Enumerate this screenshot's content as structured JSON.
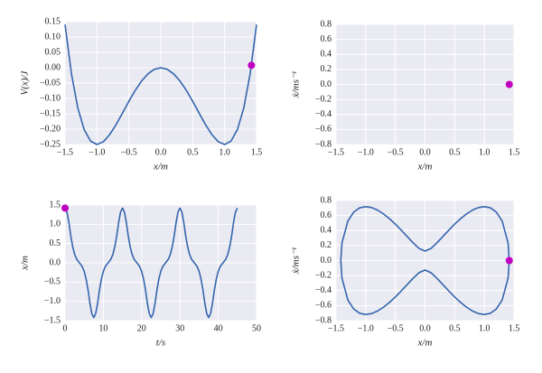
{
  "chart_data": [
    {
      "type": "line",
      "xlabel": "x/m",
      "ylabel": "V(x)/J",
      "color": "#3465ad",
      "grid": true,
      "x": [
        -1.5,
        -1.4,
        -1.3,
        -1.2,
        -1.1,
        -1.0,
        -0.9,
        -0.8,
        -0.7,
        -0.6,
        -0.5,
        -0.4,
        -0.3,
        -0.2,
        -0.1,
        0,
        0.1,
        0.2,
        0.3,
        0.4,
        0.5,
        0.6,
        0.7,
        0.8,
        0.9,
        1.0,
        1.1,
        1.2,
        1.3,
        1.4,
        1.5
      ],
      "values": [
        0.1406,
        -0.0196,
        -0.131,
        -0.2016,
        -0.239,
        -0.25,
        -0.241,
        -0.2176,
        -0.185,
        -0.1476,
        -0.1094,
        -0.0736,
        -0.043,
        -0.0196,
        -0.005,
        0,
        -0.005,
        -0.0196,
        -0.043,
        -0.0736,
        -0.1094,
        -0.1476,
        -0.185,
        -0.2176,
        -0.241,
        -0.25,
        -0.239,
        -0.2016,
        -0.131,
        -0.0196,
        0.1406
      ],
      "marker": {
        "x": 1.42,
        "y": 0.008,
        "color": "#bf00bf"
      },
      "xlim": [
        -1.5,
        1.5
      ],
      "ylim": [
        -0.25,
        0.15
      ],
      "xticks": [
        {
          "value": -1.5,
          "label": "−1.5"
        },
        {
          "value": -1.0,
          "label": "−1.0"
        },
        {
          "value": -0.5,
          "label": "−0.5"
        },
        {
          "value": 0,
          "label": "0.0"
        },
        0.5,
        {
          "value": 1.0,
          "label": "1.0"
        },
        1.5
      ],
      "yticks": [
        {
          "value": -0.25,
          "label": "−0.25"
        },
        {
          "value": -0.2,
          "label": "−0.20"
        },
        {
          "value": -0.15,
          "label": "−0.15"
        },
        {
          "value": -0.1,
          "label": "−0.10"
        },
        {
          "value": -0.05,
          "label": "−0.05"
        },
        {
          "value": 0,
          "label": "0.00"
        },
        0.05,
        {
          "value": 0.1,
          "label": "0.10"
        },
        0.15
      ]
    },
    {
      "type": "scatter",
      "xlabel": "x/m",
      "ylabel": "ẋ/ms⁻¹",
      "color": "#bf00bf",
      "grid": true,
      "x": [
        1.42
      ],
      "values": [
        0
      ],
      "xlim": [
        -1.5,
        1.5
      ],
      "ylim": [
        -0.8,
        0.8
      ],
      "xticks": [
        {
          "value": -1.5,
          "label": "−1.5"
        },
        {
          "value": -1.0,
          "label": "−1.0"
        },
        {
          "value": -0.5,
          "label": "−0.5"
        },
        {
          "value": 0,
          "label": "0.0"
        },
        0.5,
        {
          "value": 1.0,
          "label": "1.0"
        },
        1.5
      ],
      "yticks": [
        {
          "value": -0.8,
          "label": "−0.8"
        },
        {
          "value": -0.6,
          "label": "−0.6"
        },
        {
          "value": -0.4,
          "label": "−0.4"
        },
        {
          "value": -0.2,
          "label": "−0.2"
        },
        {
          "value": 0,
          "label": "0.0"
        },
        0.2,
        0.4,
        0.6,
        0.8
      ]
    },
    {
      "type": "line",
      "xlabel": "t/s",
      "ylabel": "x/m",
      "color": "#3465ad",
      "grid": true,
      "x": [
        0,
        0.5,
        1,
        1.5,
        2,
        2.5,
        3,
        3.5,
        4,
        4.5,
        5,
        5.5,
        6,
        6.5,
        7,
        7.5,
        8,
        8.5,
        9,
        9.5,
        10,
        10.5,
        11,
        11.5,
        12,
        12.5,
        13,
        13.5,
        14,
        14.5,
        15,
        15.5,
        16,
        16.5,
        17,
        17.5,
        18,
        18.5,
        19,
        19.5,
        20,
        20.5,
        21,
        21.5,
        22,
        22.5,
        23,
        23.5,
        24,
        24.5,
        25,
        25.5,
        26,
        26.5,
        27,
        27.5,
        28,
        28.5,
        29,
        29.5,
        30,
        30.5,
        31,
        31.5,
        32,
        32.5,
        33,
        33.5,
        34,
        34.5,
        35,
        35.5,
        36,
        36.5,
        37,
        37.5,
        38,
        38.5,
        39,
        39.5,
        40,
        40.5,
        41,
        41.5,
        42,
        42.5,
        43,
        43.5,
        44,
        44.5,
        45
      ],
      "values": [
        1.42,
        1.32,
        1.05,
        0.7,
        0.42,
        0.22,
        0.1,
        0.03,
        -0.03,
        -0.1,
        -0.22,
        -0.42,
        -0.7,
        -1.05,
        -1.32,
        -1.42,
        -1.32,
        -1.05,
        -0.7,
        -0.42,
        -0.22,
        -0.1,
        -0.03,
        0.03,
        0.1,
        0.22,
        0.42,
        0.7,
        1.05,
        1.32,
        1.42,
        1.32,
        1.05,
        0.7,
        0.42,
        0.22,
        0.1,
        0.03,
        -0.03,
        -0.1,
        -0.22,
        -0.42,
        -0.7,
        -1.05,
        -1.32,
        -1.42,
        -1.32,
        -1.05,
        -0.7,
        -0.42,
        -0.22,
        -0.1,
        -0.03,
        0.03,
        0.1,
        0.22,
        0.42,
        0.7,
        1.05,
        1.32,
        1.42,
        1.32,
        1.05,
        0.7,
        0.42,
        0.22,
        0.1,
        0.03,
        -0.03,
        -0.1,
        -0.22,
        -0.42,
        -0.7,
        -1.05,
        -1.32,
        -1.42,
        -1.32,
        -1.05,
        -0.7,
        -0.42,
        -0.22,
        -0.1,
        -0.03,
        0.03,
        0.1,
        0.22,
        0.42,
        0.7,
        1.05,
        1.32,
        1.42
      ],
      "marker": {
        "x": 0,
        "y": 1.42,
        "color": "#bf00bf"
      },
      "xlim": [
        0,
        50
      ],
      "ylim": [
        -1.5,
        1.5
      ],
      "xticks": [
        0,
        10,
        20,
        30,
        40,
        50
      ],
      "yticks": [
        {
          "value": -1.5,
          "label": "−1.5"
        },
        {
          "value": -1.0,
          "label": "−1.0"
        },
        {
          "value": -0.5,
          "label": "−0.5"
        },
        {
          "value": 0,
          "label": "0.0"
        },
        0.5,
        {
          "value": 1.0,
          "label": "1.0"
        },
        1.5
      ]
    },
    {
      "type": "line",
      "xlabel": "x/m",
      "ylabel": "ẋ/ms⁻¹",
      "color": "#3465ad",
      "grid": true,
      "x": [
        -1.42,
        -1.4,
        -1.3,
        -1.2,
        -1.1,
        -1.0,
        -0.9,
        -0.8,
        -0.7,
        -0.6,
        -0.5,
        -0.4,
        -0.3,
        -0.2,
        -0.1,
        0,
        0.1,
        0.2,
        0.3,
        0.4,
        0.5,
        0.6,
        0.7,
        0.8,
        0.9,
        1.0,
        1.1,
        1.2,
        1.3,
        1.4,
        1.42,
        1.4,
        1.3,
        1.2,
        1.1,
        1.0,
        0.9,
        0.8,
        0.7,
        0.6,
        0.5,
        0.4,
        0.3,
        0.2,
        0.1,
        0,
        -0.1,
        -0.2,
        -0.3,
        -0.4,
        -0.5,
        -0.6,
        -0.7,
        -0.8,
        -0.9,
        -1.0,
        -1.1,
        -1.2,
        -1.3,
        -1.4,
        -1.42
      ],
      "values": [
        0,
        0.235,
        0.527,
        0.647,
        0.703,
        0.718,
        0.706,
        0.672,
        0.621,
        0.558,
        0.485,
        0.404,
        0.319,
        0.235,
        0.161,
        0.126,
        0.161,
        0.235,
        0.319,
        0.404,
        0.485,
        0.558,
        0.621,
        0.672,
        0.706,
        0.718,
        0.703,
        0.647,
        0.527,
        0.235,
        0,
        -0.235,
        -0.527,
        -0.647,
        -0.703,
        -0.718,
        -0.706,
        -0.672,
        -0.621,
        -0.558,
        -0.485,
        -0.404,
        -0.319,
        -0.235,
        -0.161,
        -0.126,
        -0.161,
        -0.235,
        -0.319,
        -0.404,
        -0.485,
        -0.558,
        -0.621,
        -0.672,
        -0.706,
        -0.718,
        -0.703,
        -0.647,
        -0.527,
        -0.235,
        0
      ],
      "marker": {
        "x": 1.42,
        "y": 0,
        "color": "#bf00bf"
      },
      "xlim": [
        -1.5,
        1.5
      ],
      "ylim": [
        -0.8,
        0.8
      ],
      "xticks": [
        {
          "value": -1.5,
          "label": "−1.5"
        },
        {
          "value": -1.0,
          "label": "−1.0"
        },
        {
          "value": -0.5,
          "label": "−0.5"
        },
        {
          "value": 0,
          "label": "0.0"
        },
        0.5,
        {
          "value": 1.0,
          "label": "1.0"
        },
        1.5
      ],
      "yticks": [
        {
          "value": -0.8,
          "label": "−0.8"
        },
        {
          "value": -0.6,
          "label": "−0.6"
        },
        {
          "value": -0.4,
          "label": "−0.4"
        },
        {
          "value": -0.2,
          "label": "−0.2"
        },
        {
          "value": 0,
          "label": "0.0"
        },
        0.2,
        0.4,
        0.6,
        0.8
      ]
    }
  ]
}
